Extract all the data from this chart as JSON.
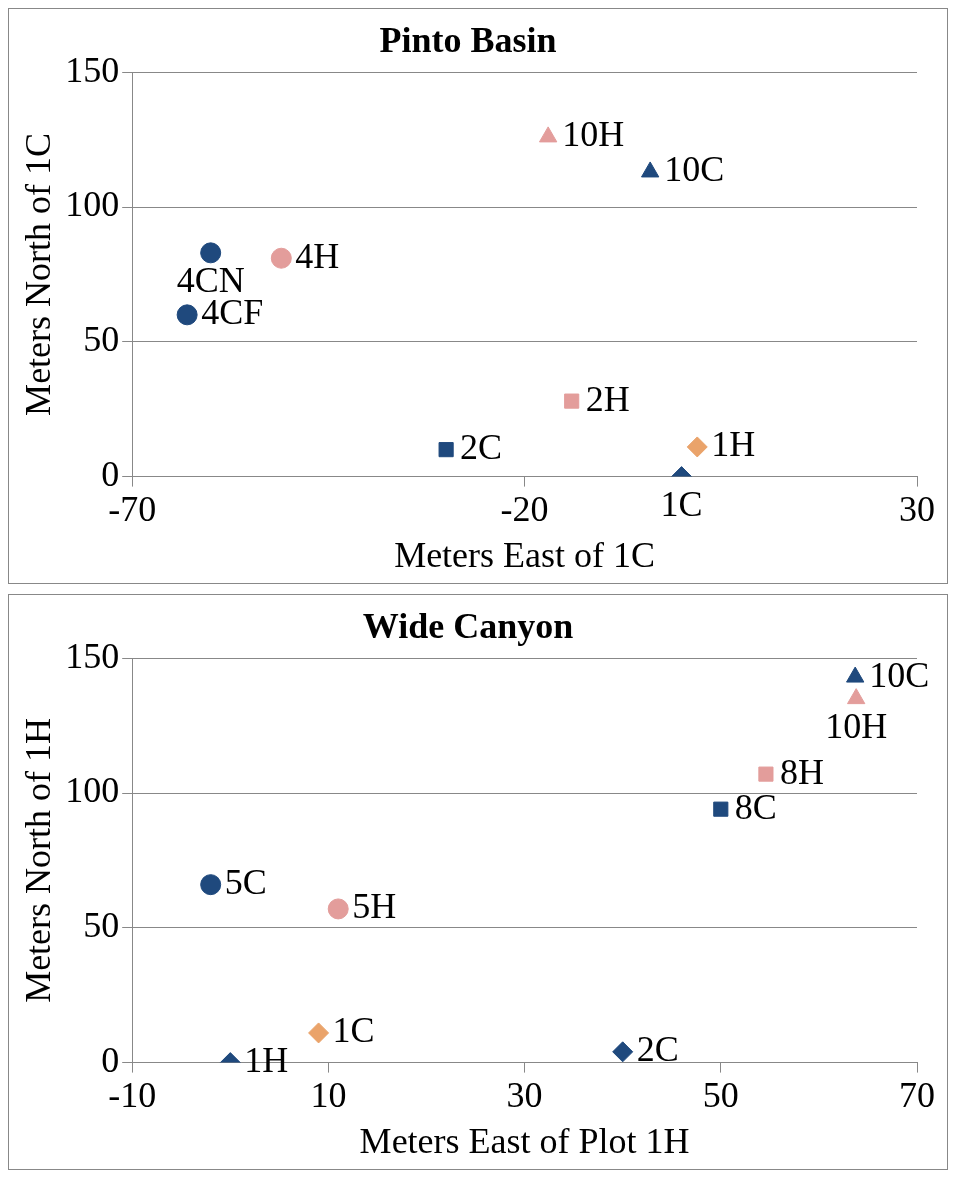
{
  "chart_data": [
    {
      "type": "scatter",
      "title": "Pinto Basin",
      "xlabel": "Meters East of 1C",
      "ylabel": "Meters North of 1C",
      "xlim": [
        -70,
        30
      ],
      "xticks": [
        -70,
        -20,
        30
      ],
      "ylim": [
        0,
        150
      ],
      "yticks": [
        0,
        50,
        100,
        150
      ],
      "grid": "y",
      "legend": false,
      "series": [
        {
          "name": "4CN",
          "marker": "circle",
          "color": "#1f497d",
          "x": [
            -60
          ],
          "values": [
            83
          ]
        },
        {
          "name": "4H",
          "marker": "circle",
          "color": "#e39d9b",
          "x": [
            -51
          ],
          "values": [
            81
          ]
        },
        {
          "name": "4CF",
          "marker": "circle",
          "color": "#1f497d",
          "x": [
            -63
          ],
          "values": [
            60
          ]
        },
        {
          "name": "10H",
          "marker": "triangle",
          "color": "#e39d9b",
          "x": [
            -17
          ],
          "values": [
            126
          ]
        },
        {
          "name": "10C",
          "marker": "triangle",
          "color": "#1f497d",
          "x": [
            -4
          ],
          "values": [
            113
          ]
        },
        {
          "name": "2H",
          "marker": "square",
          "color": "#e39d9b",
          "x": [
            -14
          ],
          "values": [
            28
          ]
        },
        {
          "name": "2C",
          "marker": "square",
          "color": "#1f497d",
          "x": [
            -30
          ],
          "values": [
            10
          ]
        },
        {
          "name": "1H",
          "marker": "diamond",
          "color": "#eaa36a",
          "x": [
            2
          ],
          "values": [
            11
          ]
        },
        {
          "name": "1C",
          "marker": "diamond",
          "color": "#1f497d",
          "x": [
            0
          ],
          "values": [
            0
          ]
        }
      ]
    },
    {
      "type": "scatter",
      "title": "Wide Canyon",
      "xlabel": "Meters East of Plot 1H",
      "ylabel": "Meters North of 1H",
      "xlim": [
        -10,
        70
      ],
      "xticks": [
        -10,
        10,
        30,
        50,
        70
      ],
      "ylim": [
        0,
        150
      ],
      "yticks": [
        0,
        50,
        100,
        150
      ],
      "grid": "y",
      "legend": false,
      "series": [
        {
          "name": "10C",
          "marker": "triangle",
          "color": "#1f497d",
          "x": [
            63.7
          ],
          "values": [
            143
          ]
        },
        {
          "name": "10H",
          "marker": "triangle",
          "color": "#e39d9b",
          "x": [
            63.8
          ],
          "values": [
            135
          ]
        },
        {
          "name": "8H",
          "marker": "square",
          "color": "#e39d9b",
          "x": [
            54.6
          ],
          "values": [
            107
          ]
        },
        {
          "name": "8C",
          "marker": "square",
          "color": "#1f497d",
          "x": [
            50
          ],
          "values": [
            94
          ]
        },
        {
          "name": "5C",
          "marker": "circle",
          "color": "#1f497d",
          "x": [
            -2
          ],
          "values": [
            66
          ]
        },
        {
          "name": "5H",
          "marker": "circle",
          "color": "#e39d9b",
          "x": [
            11
          ],
          "values": [
            57
          ]
        },
        {
          "name": "1C",
          "marker": "diamond",
          "color": "#eaa36a",
          "x": [
            9
          ],
          "values": [
            11
          ]
        },
        {
          "name": "1H",
          "marker": "diamond",
          "color": "#1f497d",
          "x": [
            0
          ],
          "values": [
            0
          ]
        },
        {
          "name": "2C",
          "marker": "diamond",
          "color": "#1f497d",
          "x": [
            40
          ],
          "values": [
            4
          ]
        }
      ]
    }
  ]
}
